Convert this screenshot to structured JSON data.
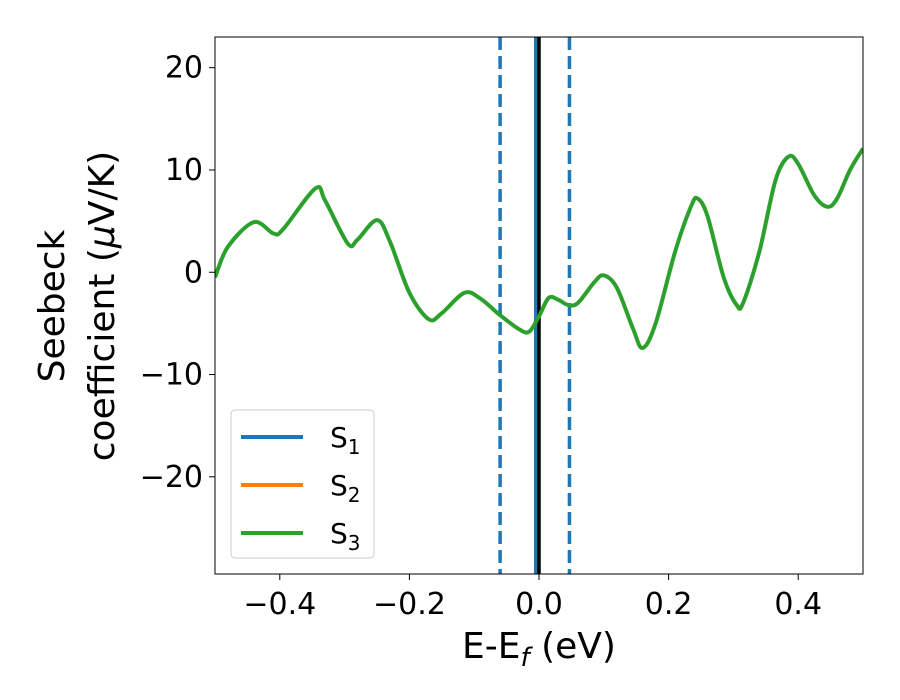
{
  "chart_data": {
    "type": "line",
    "xlabel": {
      "main": "E-E",
      "sub": "f",
      "suffix": " (eV)"
    },
    "ylabel": {
      "line1": "Seebeck",
      "line2_text": "coefficient  (",
      "line2_mu": "μ",
      "line2_suffix": "V/K)"
    },
    "xlim": [
      -0.5,
      0.5
    ],
    "ylim": [
      -29.5,
      23
    ],
    "xticks": [
      -0.4,
      -0.2,
      0.0,
      0.2,
      0.4
    ],
    "xtick_labels": [
      "−0.4",
      "−0.2",
      "0.0",
      "0.2",
      "0.4"
    ],
    "yticks": [
      -20,
      -10,
      0,
      10,
      20
    ],
    "ytick_labels": [
      "−20",
      "−10",
      "0",
      "10",
      "20"
    ],
    "grid": false,
    "legend_position": "lower-left",
    "vlines": [
      {
        "x": -0.06,
        "style": "dashed",
        "color": "#1f77b4"
      },
      {
        "x": 0.047,
        "style": "dashed",
        "color": "#1f77b4"
      },
      {
        "x": -0.005,
        "style": "solid",
        "color": "#1f77b4"
      },
      {
        "x": 0.0,
        "style": "solid",
        "color": "#000000"
      }
    ],
    "series": [
      {
        "name": "S",
        "sub": "1",
        "color": "#1f77b4",
        "points": []
      },
      {
        "name": "S",
        "sub": "2",
        "color": "#ff7f0e",
        "points": []
      },
      {
        "name": "S",
        "sub": "3",
        "color": "#2ca02c",
        "points": [
          [
            -0.5,
            -0.5
          ],
          [
            -0.48,
            2.5
          ],
          [
            -0.44,
            4.9
          ],
          [
            -0.41,
            3.8
          ],
          [
            -0.395,
            4.2
          ],
          [
            -0.345,
            8.2
          ],
          [
            -0.33,
            7.0
          ],
          [
            -0.295,
            2.8
          ],
          [
            -0.28,
            3.2
          ],
          [
            -0.25,
            5.1
          ],
          [
            -0.23,
            3.0
          ],
          [
            -0.2,
            -2.0
          ],
          [
            -0.17,
            -4.6
          ],
          [
            -0.15,
            -4.0
          ],
          [
            -0.115,
            -2.0
          ],
          [
            -0.09,
            -2.6
          ],
          [
            -0.06,
            -4.2
          ],
          [
            -0.03,
            -5.6
          ],
          [
            -0.015,
            -5.8
          ],
          [
            0.0,
            -4.3
          ],
          [
            0.015,
            -2.5
          ],
          [
            0.03,
            -2.7
          ],
          [
            0.045,
            -3.2
          ],
          [
            0.06,
            -3.0
          ],
          [
            0.085,
            -1.0
          ],
          [
            0.1,
            -0.3
          ],
          [
            0.12,
            -1.5
          ],
          [
            0.145,
            -5.5
          ],
          [
            0.16,
            -7.4
          ],
          [
            0.18,
            -5.0
          ],
          [
            0.21,
            2.0
          ],
          [
            0.235,
            6.5
          ],
          [
            0.245,
            7.2
          ],
          [
            0.26,
            5.5
          ],
          [
            0.285,
            -0.5
          ],
          [
            0.305,
            -3.2
          ],
          [
            0.315,
            -3.0
          ],
          [
            0.34,
            2.0
          ],
          [
            0.365,
            9.0
          ],
          [
            0.385,
            11.3
          ],
          [
            0.4,
            10.6
          ],
          [
            0.425,
            7.5
          ],
          [
            0.445,
            6.4
          ],
          [
            0.46,
            7.2
          ],
          [
            0.48,
            10.0
          ],
          [
            0.5,
            12.1
          ]
        ]
      }
    ]
  }
}
